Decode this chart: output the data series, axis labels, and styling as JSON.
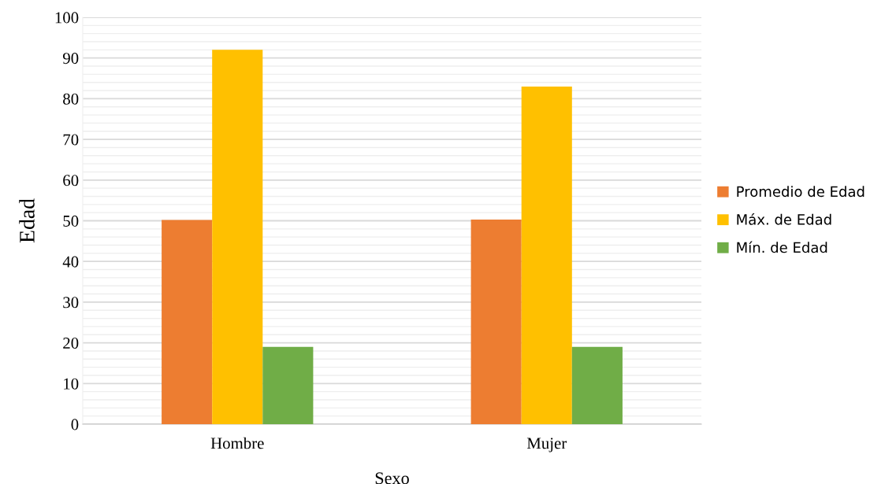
{
  "chart_data": {
    "type": "bar",
    "xlabel": "Sexo",
    "ylabel": "Edad",
    "categories": [
      "Hombre",
      "Mujer"
    ],
    "series": [
      {
        "name": "Promedio de Edad",
        "color": "#ed7d31",
        "values": [
          50.2,
          50.3
        ]
      },
      {
        "name": "Máx. de Edad",
        "color": "#ffc000",
        "values": [
          92,
          83
        ]
      },
      {
        "name": "Mín. de Edad",
        "color": "#70ad47",
        "values": [
          19,
          19
        ]
      }
    ],
    "ylim": [
      0,
      100
    ],
    "yticks": [
      0,
      {
        "value": 2,
        "label": null
      },
      {
        "value": 4,
        "label": null
      },
      {
        "value": 6,
        "label": null
      },
      {
        "value": 8,
        "label": null
      },
      10,
      {
        "value": 12,
        "label": null
      },
      {
        "value": 14,
        "label": null
      },
      {
        "value": 16,
        "label": null
      },
      {
        "value": 18,
        "label": null
      },
      20,
      {
        "value": 22,
        "label": null
      },
      {
        "value": 24,
        "label": null
      },
      {
        "value": 26,
        "label": null
      },
      {
        "value": 28,
        "label": null
      },
      30,
      {
        "value": 32,
        "label": null
      },
      {
        "value": 34,
        "label": null
      },
      {
        "value": 36,
        "label": null
      },
      {
        "value": 38,
        "label": null
      },
      40,
      {
        "value": 42,
        "label": null
      },
      {
        "value": 44,
        "label": null
      },
      {
        "value": 46,
        "label": null
      },
      {
        "value": 48,
        "label": null
      },
      50,
      {
        "value": 52,
        "label": null
      },
      {
        "value": 54,
        "label": null
      },
      {
        "value": 56,
        "label": null
      },
      {
        "value": 58,
        "label": null
      },
      60,
      {
        "value": 62,
        "label": null
      },
      {
        "value": 64,
        "label": null
      },
      {
        "value": 66,
        "label": null
      },
      {
        "value": 68,
        "label": null
      },
      70,
      {
        "value": 72,
        "label": null
      },
      {
        "value": 74,
        "label": null
      },
      {
        "value": 76,
        "label": null
      },
      {
        "value": 78,
        "label": null
      },
      80,
      {
        "value": 82,
        "label": null
      },
      {
        "value": 84,
        "label": null
      },
      {
        "value": 86,
        "label": null
      },
      {
        "value": 88,
        "label": null
      },
      90,
      {
        "value": 92,
        "label": null
      },
      {
        "value": 94,
        "label": null
      },
      {
        "value": 96,
        "label": null
      },
      {
        "value": 98,
        "label": null
      },
      100
    ],
    "grid": "y",
    "legend": "right"
  }
}
